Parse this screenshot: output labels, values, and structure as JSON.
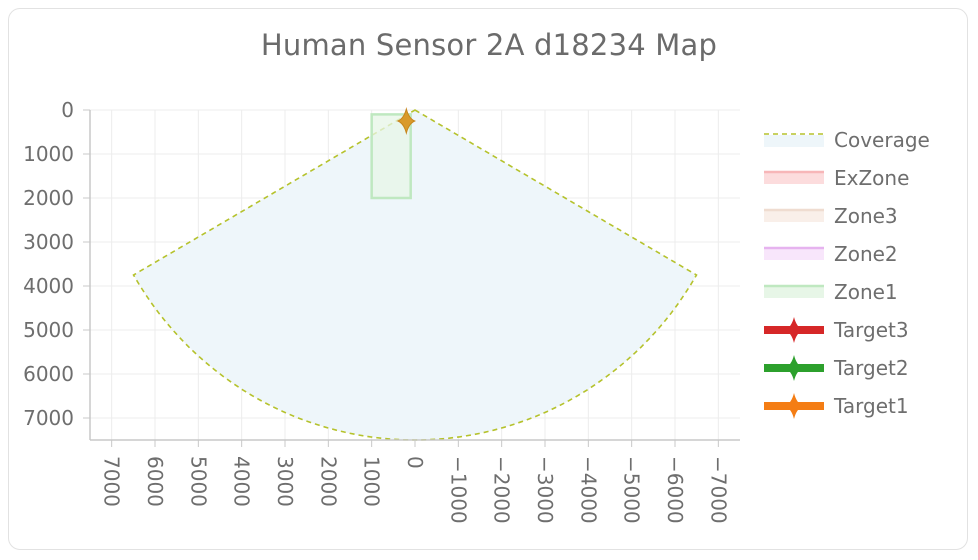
{
  "chart_data": {
    "type": "scatter",
    "title": "Human Sensor 2A d18234 Map",
    "xlabel": "",
    "ylabel": "",
    "x_axis": {
      "min": -7500,
      "max": 7500,
      "reversed": true,
      "ticks": [
        7000,
        6000,
        5000,
        4000,
        3000,
        2000,
        1000,
        0,
        -1000,
        -2000,
        -3000,
        -4000,
        -5000,
        -6000,
        -7000
      ]
    },
    "y_axis": {
      "min": 0,
      "max": 7500,
      "reversed": true,
      "ticks": [
        0,
        1000,
        2000,
        3000,
        4000,
        5000,
        6000,
        7000
      ]
    },
    "grid": true,
    "legend_position": "right",
    "coverage": {
      "radius": 7500,
      "angle_degrees": 60
    },
    "zones": [
      {
        "name": "Zone1",
        "x1": 1000,
        "y1": 100,
        "x2": 100,
        "y2": 2000
      }
    ],
    "targets": [
      {
        "name": "Target1",
        "x": 200,
        "y": 250
      }
    ],
    "legend": [
      {
        "name": "Coverage",
        "style": "dashed",
        "color": "#b5c22c",
        "fill": "#eef6fa"
      },
      {
        "name": "ExZone",
        "style": "box",
        "color": "#f7b6b8",
        "fill": "#fcdcdd"
      },
      {
        "name": "Zone3",
        "style": "box",
        "color": "#efdcd0",
        "fill": "#f9efe9"
      },
      {
        "name": "Zone2",
        "style": "box",
        "color": "#e6b3ef",
        "fill": "#f8e6fb"
      },
      {
        "name": "Zone1",
        "style": "box",
        "color": "#bfe8c0",
        "fill": "#e7f6e7"
      },
      {
        "name": "Target3",
        "style": "target",
        "color": "#d62728"
      },
      {
        "name": "Target2",
        "style": "target",
        "color": "#2ca02c"
      },
      {
        "name": "Target1",
        "style": "target",
        "color": "#f47d14"
      }
    ]
  }
}
